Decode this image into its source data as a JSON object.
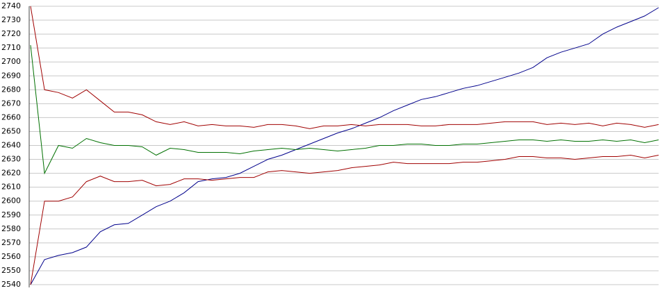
{
  "chart_data": {
    "type": "line",
    "ylim": [
      2540,
      2740
    ],
    "yticks": [
      2540,
      2550,
      2560,
      2570,
      2580,
      2590,
      2600,
      2610,
      2620,
      2630,
      2640,
      2650,
      2660,
      2670,
      2680,
      2690,
      2700,
      2710,
      2720,
      2730,
      2740
    ],
    "grid": true,
    "series": [
      {
        "color": "#00008b",
        "values": [
          2540,
          2558,
          2561,
          2563,
          2567,
          2578,
          2583,
          2584,
          2590,
          2596,
          2600,
          2606,
          2614,
          2616,
          2617,
          2620,
          2625,
          2630,
          2633,
          2637,
          2641,
          2645,
          2649,
          2652,
          2656,
          2660,
          2665,
          2669,
          2673,
          2675,
          2678,
          2681,
          2683,
          2686,
          2689,
          2692,
          2696,
          2703,
          2707,
          2710,
          2713,
          2720,
          2725,
          2729,
          2733,
          2739
        ]
      },
      {
        "color": "#a00000",
        "values": [
          2740,
          2680,
          2678,
          2674,
          2680,
          2672,
          2664,
          2664,
          2662,
          2657,
          2655,
          2657,
          2654,
          2655,
          2654,
          2654,
          2653,
          2655,
          2655,
          2654,
          2652,
          2654,
          2654,
          2655,
          2654,
          2655,
          2655,
          2655,
          2654,
          2654,
          2655,
          2655,
          2655,
          2656,
          2657,
          2657,
          2657,
          2655,
          2656,
          2655,
          2656,
          2654,
          2656,
          2655,
          2653,
          2655
        ]
      },
      {
        "color": "#007000",
        "values": [
          2712,
          2620,
          2640,
          2638,
          2645,
          2642,
          2640,
          2640,
          2639,
          2633,
          2638,
          2637,
          2635,
          2635,
          2635,
          2634,
          2636,
          2637,
          2638,
          2637,
          2638,
          2637,
          2636,
          2637,
          2638,
          2640,
          2640,
          2641,
          2641,
          2640,
          2640,
          2641,
          2641,
          2642,
          2643,
          2644,
          2644,
          2643,
          2644,
          2643,
          2643,
          2644,
          2643,
          2644,
          2642,
          2644
        ]
      },
      {
        "color": "#a00000",
        "values": [
          2540,
          2600,
          2600,
          2603,
          2614,
          2618,
          2614,
          2614,
          2615,
          2611,
          2612,
          2616,
          2616,
          2615,
          2616,
          2617,
          2617,
          2621,
          2622,
          2621,
          2620,
          2621,
          2622,
          2624,
          2625,
          2626,
          2628,
          2627,
          2627,
          2627,
          2627,
          2628,
          2628,
          2629,
          2630,
          2632,
          2632,
          2631,
          2631,
          2630,
          2631,
          2632,
          2632,
          2633,
          2631,
          2633
        ]
      }
    ]
  }
}
